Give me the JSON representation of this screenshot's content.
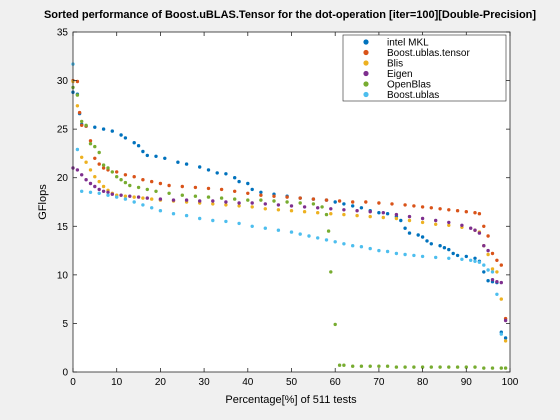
{
  "chart_data": {
    "type": "scatter",
    "title": "Sorted performance of Boost.uBLAS.Tensor for the dot-operation [iter=100][Double-Precision]",
    "xlabel": "Percentage[%] of 511 tests",
    "ylabel": "GFlops",
    "xlim": [
      0,
      100
    ],
    "ylim": [
      0,
      35
    ],
    "xticks": [
      "0",
      "10",
      "20",
      "30",
      "40",
      "50",
      "60",
      "70",
      "80",
      "90",
      "100"
    ],
    "yticks": [
      "0",
      "5",
      "10",
      "15",
      "20",
      "25",
      "30",
      "35"
    ],
    "grid": false,
    "legend_position": "top-right",
    "series": [
      {
        "name": "intel MKL",
        "color": "#0072bd",
        "points": [
          [
            0,
            28.8
          ],
          [
            1,
            28.6
          ],
          [
            1.5,
            26.6
          ],
          [
            2,
            25.5
          ],
          [
            3,
            25.3
          ],
          [
            5,
            25.2
          ],
          [
            7,
            25
          ],
          [
            9,
            24.8
          ],
          [
            11,
            24.4
          ],
          [
            12,
            24.1
          ],
          [
            14,
            23.6
          ],
          [
            15,
            23.3
          ],
          [
            16,
            22.7
          ],
          [
            17,
            22.3
          ],
          [
            19,
            22.2
          ],
          [
            21,
            22
          ],
          [
            24,
            21.6
          ],
          [
            26,
            21.4
          ],
          [
            29,
            21.1
          ],
          [
            31,
            20.8
          ],
          [
            33,
            20.5
          ],
          [
            35,
            20.4
          ],
          [
            37,
            20
          ],
          [
            38,
            19.6
          ],
          [
            40,
            19.4
          ],
          [
            41,
            18.8
          ],
          [
            43,
            18.5
          ],
          [
            46,
            18.3
          ],
          [
            49,
            18.1
          ],
          [
            52,
            17.9
          ],
          [
            55,
            17.8
          ],
          [
            58,
            17.7
          ],
          [
            60,
            17.5
          ],
          [
            62,
            17.3
          ],
          [
            64,
            17.1
          ],
          [
            66,
            16.9
          ],
          [
            68,
            16.6
          ],
          [
            70,
            16.4
          ],
          [
            72,
            16.3
          ],
          [
            74,
            16
          ],
          [
            75,
            15.6
          ],
          [
            76,
            14.8
          ],
          [
            77,
            14.3
          ],
          [
            79,
            14.1
          ],
          [
            80,
            13.9
          ],
          [
            81,
            13.5
          ],
          [
            82,
            13.2
          ],
          [
            84,
            13
          ],
          [
            85,
            12.8
          ],
          [
            86,
            12.6
          ],
          [
            87,
            12.2
          ],
          [
            88,
            12
          ],
          [
            90,
            11.9
          ],
          [
            92,
            11.7
          ],
          [
            93,
            11.4
          ],
          [
            94,
            10.3
          ],
          [
            95,
            9.4
          ],
          [
            96,
            9.3
          ],
          [
            97,
            9.2
          ],
          [
            98,
            4.1
          ],
          [
            99,
            3.5
          ]
        ]
      },
      {
        "name": "Boost.ublas.tensor",
        "color": "#d95319",
        "points": [
          [
            0,
            30
          ],
          [
            1,
            29.9
          ],
          [
            1.5,
            26.7
          ],
          [
            2,
            25.4
          ],
          [
            3,
            25.3
          ],
          [
            4,
            23.8
          ],
          [
            5,
            22
          ],
          [
            6,
            21.4
          ],
          [
            7,
            21
          ],
          [
            8,
            20.8
          ],
          [
            10,
            20.6
          ],
          [
            12,
            20.3
          ],
          [
            14,
            20.1
          ],
          [
            16,
            19.8
          ],
          [
            18,
            19.6
          ],
          [
            20,
            19.4
          ],
          [
            22,
            19.2
          ],
          [
            25,
            19.1
          ],
          [
            28,
            19
          ],
          [
            31,
            18.9
          ],
          [
            34,
            18.8
          ],
          [
            37,
            18.6
          ],
          [
            40,
            18.4
          ],
          [
            43,
            18.2
          ],
          [
            46,
            18.1
          ],
          [
            49,
            18
          ],
          [
            52,
            17.9
          ],
          [
            55,
            17.8
          ],
          [
            58,
            17.7
          ],
          [
            61,
            17.6
          ],
          [
            64,
            17.5
          ],
          [
            67,
            17.5
          ],
          [
            70,
            17.4
          ],
          [
            73,
            17.3
          ],
          [
            76,
            17.2
          ],
          [
            78,
            17.1
          ],
          [
            80,
            17
          ],
          [
            82,
            16.9
          ],
          [
            84,
            16.8
          ],
          [
            86,
            16.7
          ],
          [
            88,
            16.6
          ],
          [
            90,
            16.5
          ],
          [
            92,
            16.4
          ],
          [
            93,
            16.3
          ],
          [
            94,
            15
          ],
          [
            95,
            14
          ],
          [
            96,
            12.2
          ],
          [
            97,
            11.5
          ],
          [
            98,
            11
          ],
          [
            99,
            5.5
          ]
        ]
      },
      {
        "name": "Blis",
        "color": "#edb120",
        "points": [
          [
            0,
            29.9
          ],
          [
            1,
            27.4
          ],
          [
            2,
            22.1
          ],
          [
            3,
            21.6
          ],
          [
            4,
            20.8
          ],
          [
            5,
            20.1
          ],
          [
            6,
            19.6
          ],
          [
            7,
            19.1
          ],
          [
            8,
            18.7
          ],
          [
            9,
            18.4
          ],
          [
            10,
            18.2
          ],
          [
            12,
            18.1
          ],
          [
            14,
            18
          ],
          [
            16,
            17.9
          ],
          [
            18,
            17.8
          ],
          [
            20,
            17.7
          ],
          [
            23,
            17.6
          ],
          [
            26,
            17.5
          ],
          [
            29,
            17.4
          ],
          [
            32,
            17.3
          ],
          [
            35,
            17.2
          ],
          [
            38,
            17.1
          ],
          [
            41,
            17
          ],
          [
            44,
            16.8
          ],
          [
            47,
            16.7
          ],
          [
            50,
            16.6
          ],
          [
            53,
            16.5
          ],
          [
            56,
            16.4
          ],
          [
            59,
            16.3
          ],
          [
            62,
            16.2
          ],
          [
            65,
            16.1
          ],
          [
            68,
            16
          ],
          [
            71,
            15.9
          ],
          [
            74,
            15.8
          ],
          [
            77,
            15.6
          ],
          [
            80,
            15.4
          ],
          [
            83,
            15.2
          ],
          [
            86,
            15.1
          ],
          [
            89,
            14.9
          ],
          [
            92,
            14.6
          ],
          [
            93,
            14.4
          ],
          [
            94,
            13
          ],
          [
            95,
            12.1
          ],
          [
            96,
            10.6
          ],
          [
            97,
            10.3
          ],
          [
            98,
            7.5
          ],
          [
            99,
            3.2
          ]
        ]
      },
      {
        "name": "Eigen",
        "color": "#7e2f8e",
        "points": [
          [
            0,
            21
          ],
          [
            1,
            20.8
          ],
          [
            2,
            20.3
          ],
          [
            3,
            19.8
          ],
          [
            4,
            19.4
          ],
          [
            5,
            19.1
          ],
          [
            6,
            18.8
          ],
          [
            7,
            18.6
          ],
          [
            8,
            18.5
          ],
          [
            9,
            18.3
          ],
          [
            11,
            18.2
          ],
          [
            13,
            18.1
          ],
          [
            15,
            18
          ],
          [
            17,
            17.9
          ],
          [
            20,
            17.8
          ],
          [
            23,
            17.7
          ],
          [
            26,
            17.7
          ],
          [
            29,
            17.6
          ],
          [
            32,
            17.6
          ],
          [
            35,
            17.5
          ],
          [
            38,
            17.4
          ],
          [
            41,
            17.4
          ],
          [
            44,
            17.3
          ],
          [
            47,
            17.2
          ],
          [
            50,
            17.1
          ],
          [
            53,
            17
          ],
          [
            56,
            16.9
          ],
          [
            59,
            16.8
          ],
          [
            62,
            16.7
          ],
          [
            65,
            16.6
          ],
          [
            68,
            16.5
          ],
          [
            71,
            16.4
          ],
          [
            74,
            16.2
          ],
          [
            77,
            16
          ],
          [
            80,
            15.8
          ],
          [
            83,
            15.6
          ],
          [
            86,
            15.4
          ],
          [
            89,
            15.1
          ],
          [
            91,
            14.8
          ],
          [
            92,
            14.6
          ],
          [
            93,
            14.3
          ],
          [
            94,
            13
          ],
          [
            95,
            12.5
          ],
          [
            96,
            9.5
          ],
          [
            97,
            9.3
          ],
          [
            98,
            9.2
          ],
          [
            99,
            5.3
          ]
        ]
      },
      {
        "name": "OpenBlas",
        "color": "#77ac30",
        "points": [
          [
            0,
            29.3
          ],
          [
            1,
            28.5
          ],
          [
            2,
            25.8
          ],
          [
            3,
            25.4
          ],
          [
            4,
            23.5
          ],
          [
            5,
            23.2
          ],
          [
            6,
            22.6
          ],
          [
            7,
            21.3
          ],
          [
            8,
            21
          ],
          [
            9,
            20.6
          ],
          [
            10,
            20.1
          ],
          [
            11,
            19.8
          ],
          [
            12,
            19.5
          ],
          [
            13,
            19.2
          ],
          [
            15,
            19
          ],
          [
            17,
            18.8
          ],
          [
            19,
            18.6
          ],
          [
            22,
            18.4
          ],
          [
            25,
            18.2
          ],
          [
            28,
            18.1
          ],
          [
            31,
            18
          ],
          [
            34,
            17.9
          ],
          [
            37,
            17.8
          ],
          [
            40,
            17.7
          ],
          [
            43,
            17.7
          ],
          [
            46,
            17.6
          ],
          [
            49,
            17.5
          ],
          [
            52,
            17.4
          ],
          [
            55,
            17.3
          ],
          [
            57,
            17
          ],
          [
            58,
            16.2
          ],
          [
            58.5,
            14.5
          ],
          [
            59,
            10.3
          ],
          [
            60,
            4.9
          ],
          [
            61,
            0.7
          ],
          [
            62,
            0.7
          ],
          [
            64,
            0.6
          ],
          [
            66,
            0.6
          ],
          [
            68,
            0.6
          ],
          [
            70,
            0.6
          ],
          [
            72,
            0.6
          ],
          [
            74,
            0.5
          ],
          [
            76,
            0.5
          ],
          [
            78,
            0.5
          ],
          [
            80,
            0.5
          ],
          [
            82,
            0.5
          ],
          [
            84,
            0.5
          ],
          [
            86,
            0.5
          ],
          [
            88,
            0.5
          ],
          [
            90,
            0.5
          ],
          [
            92,
            0.5
          ],
          [
            94,
            0.4
          ],
          [
            96,
            0.4
          ],
          [
            98,
            0.4
          ],
          [
            99,
            0.4
          ]
        ]
      },
      {
        "name": "Boost.ublas",
        "color": "#4dbeee",
        "points": [
          [
            0,
            31.7
          ],
          [
            1,
            22.9
          ],
          [
            2,
            18.6
          ],
          [
            4,
            18.5
          ],
          [
            6,
            18.4
          ],
          [
            8,
            18.2
          ],
          [
            10,
            18
          ],
          [
            12,
            17.8
          ],
          [
            14,
            17.5
          ],
          [
            16,
            17.2
          ],
          [
            18,
            16.9
          ],
          [
            20,
            16.6
          ],
          [
            23,
            16.3
          ],
          [
            26,
            16.1
          ],
          [
            29,
            15.8
          ],
          [
            32,
            15.6
          ],
          [
            35,
            15.5
          ],
          [
            38,
            15.3
          ],
          [
            41,
            15
          ],
          [
            44,
            14.8
          ],
          [
            47,
            14.6
          ],
          [
            50,
            14.4
          ],
          [
            52,
            14.2
          ],
          [
            54,
            14
          ],
          [
            56,
            13.8
          ],
          [
            58,
            13.6
          ],
          [
            60,
            13.4
          ],
          [
            62,
            13.2
          ],
          [
            64,
            13
          ],
          [
            66,
            12.9
          ],
          [
            68,
            12.7
          ],
          [
            70,
            12.5
          ],
          [
            72,
            12.4
          ],
          [
            74,
            12.2
          ],
          [
            76,
            12.1
          ],
          [
            78,
            12
          ],
          [
            80,
            11.9
          ],
          [
            83,
            11.8
          ],
          [
            86,
            11.7
          ],
          [
            89,
            11.6
          ],
          [
            91,
            11.5
          ],
          [
            92,
            11.4
          ],
          [
            93,
            11.3
          ],
          [
            94,
            11
          ],
          [
            95,
            10.5
          ],
          [
            96,
            10.3
          ],
          [
            97,
            8
          ],
          [
            98,
            3.9
          ]
        ]
      }
    ]
  }
}
